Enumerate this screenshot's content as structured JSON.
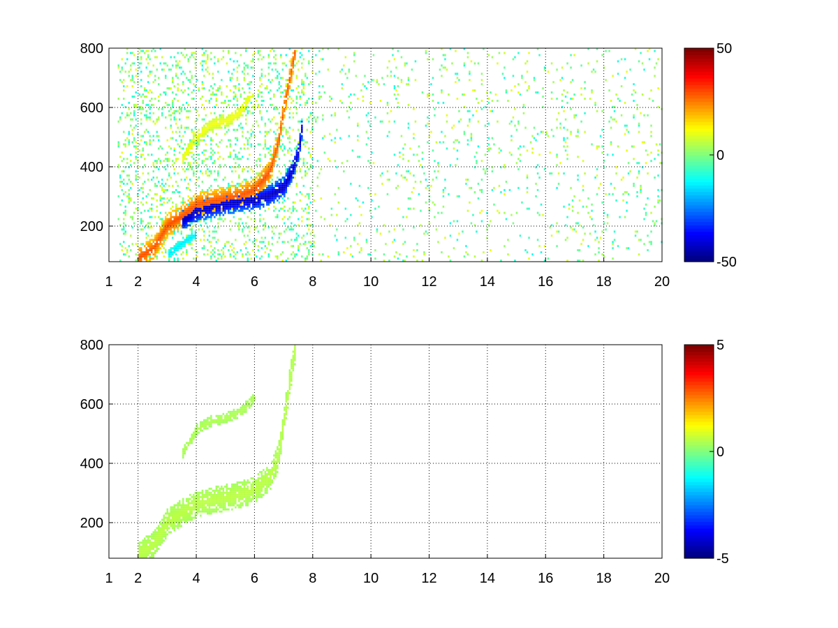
{
  "chart_data": [
    {
      "type": "heatmap",
      "panel": "top",
      "title": "",
      "xlabel": "",
      "ylabel": "",
      "xlim": [
        1,
        20
      ],
      "ylim": [
        80,
        800
      ],
      "x_ticks": [
        1,
        2,
        4,
        6,
        8,
        10,
        12,
        14,
        16,
        18,
        20
      ],
      "y_ticks": [
        200,
        400,
        600,
        800
      ],
      "grid": true,
      "colormap": "jet",
      "colorbar": {
        "min": -50,
        "max": 50,
        "ticks": [
          -50,
          0,
          50
        ]
      },
      "features": [
        {
          "kind": "band",
          "value": 30,
          "width": 40,
          "points": [
            [
              2.0,
              90
            ],
            [
              2.5,
              120
            ],
            [
              3.0,
              200
            ],
            [
              3.5,
              230
            ],
            [
              4.0,
              270
            ],
            [
              4.5,
              280
            ],
            [
              5.0,
              290
            ],
            [
              5.5,
              300
            ],
            [
              6.0,
              320
            ],
            [
              6.5,
              380
            ],
            [
              6.8,
              480
            ],
            [
              7.0,
              600
            ],
            [
              7.2,
              700
            ],
            [
              7.4,
              800
            ]
          ]
        },
        {
          "kind": "band",
          "value": -45,
          "width": 35,
          "points": [
            [
              3.5,
              215
            ],
            [
              4.0,
              245
            ],
            [
              4.5,
              260
            ],
            [
              5.0,
              270
            ],
            [
              5.5,
              280
            ],
            [
              6.0,
              285
            ],
            [
              6.5,
              300
            ],
            [
              7.0,
              330
            ],
            [
              7.3,
              390
            ],
            [
              7.5,
              450
            ],
            [
              7.6,
              520
            ]
          ]
        },
        {
          "kind": "band",
          "value": 12,
          "width": 20,
          "points": [
            [
              3.5,
              420
            ],
            [
              4.0,
              500
            ],
            [
              4.5,
              540
            ],
            [
              5.0,
              550
            ],
            [
              5.5,
              580
            ],
            [
              5.8,
              630
            ]
          ]
        },
        {
          "kind": "band",
          "value": -15,
          "width": 16,
          "points": [
            [
              3.0,
              100
            ],
            [
              3.5,
              140
            ],
            [
              4.0,
              170
            ]
          ]
        }
      ]
    },
    {
      "type": "heatmap",
      "panel": "bottom",
      "title": "",
      "xlabel": "",
      "ylabel": "",
      "xlim": [
        1,
        20
      ],
      "ylim": [
        80,
        800
      ],
      "x_ticks": [
        1,
        2,
        4,
        6,
        8,
        10,
        12,
        14,
        16,
        18,
        20
      ],
      "y_ticks": [
        200,
        400,
        600,
        800
      ],
      "grid": true,
      "colormap": "jet",
      "colorbar": {
        "min": -5,
        "max": 5,
        "ticks": [
          -5,
          0,
          5
        ]
      },
      "features": [
        {
          "kind": "band",
          "value": 0.6,
          "width": 45,
          "points": [
            [
              2.0,
              90
            ],
            [
              2.5,
              120
            ],
            [
              3.0,
              200
            ],
            [
              3.5,
              230
            ],
            [
              4.0,
              260
            ],
            [
              4.5,
              270
            ],
            [
              5.0,
              280
            ],
            [
              5.5,
              290
            ],
            [
              6.0,
              310
            ],
            [
              6.5,
              350
            ],
            [
              6.8,
              420
            ],
            [
              7.0,
              550
            ],
            [
              7.2,
              680
            ],
            [
              7.4,
              800
            ]
          ]
        },
        {
          "kind": "band",
          "value": 0.5,
          "width": 18,
          "points": [
            [
              3.5,
              430
            ],
            [
              4.0,
              510
            ],
            [
              4.5,
              540
            ],
            [
              5.0,
              550
            ],
            [
              5.5,
              570
            ],
            [
              6.0,
              620
            ]
          ]
        }
      ]
    }
  ]
}
